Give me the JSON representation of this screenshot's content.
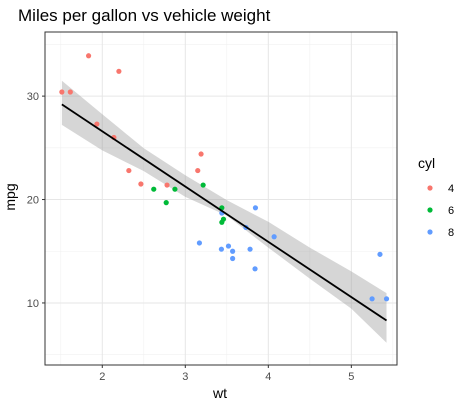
{
  "chart_data": {
    "type": "scatter",
    "title": "Miles per gallon vs vehicle weight",
    "xlabel": "wt",
    "ylabel": "mpg",
    "xlim": [
      1.31,
      5.55
    ],
    "ylim": [
      4.0,
      36.2
    ],
    "x_ticks": [
      2,
      3,
      4,
      5
    ],
    "y_ticks": [
      10,
      20,
      30
    ],
    "x_tick_labels": [
      "2",
      "3",
      "4",
      "5"
    ],
    "y_tick_labels": [
      "10",
      "20",
      "30"
    ],
    "grid": true,
    "legend_position": "right",
    "legend_title": "cyl",
    "series": [
      {
        "name": "4",
        "color": "#F8766D",
        "points": [
          {
            "x": 2.32,
            "y": 22.8
          },
          {
            "x": 3.19,
            "y": 24.4
          },
          {
            "x": 3.15,
            "y": 22.8
          },
          {
            "x": 2.2,
            "y": 32.4
          },
          {
            "x": 1.615,
            "y": 30.4
          },
          {
            "x": 1.835,
            "y": 33.9
          },
          {
            "x": 2.465,
            "y": 21.5
          },
          {
            "x": 1.935,
            "y": 27.3
          },
          {
            "x": 2.14,
            "y": 26.0
          },
          {
            "x": 1.513,
            "y": 30.4
          },
          {
            "x": 2.78,
            "y": 21.4
          }
        ]
      },
      {
        "name": "6",
        "color": "#00BA38",
        "points": [
          {
            "x": 2.62,
            "y": 21.0
          },
          {
            "x": 2.875,
            "y": 21.0
          },
          {
            "x": 3.215,
            "y": 21.4
          },
          {
            "x": 3.46,
            "y": 18.1
          },
          {
            "x": 3.44,
            "y": 19.2
          },
          {
            "x": 3.44,
            "y": 17.8
          },
          {
            "x": 2.77,
            "y": 19.7
          }
        ]
      },
      {
        "name": "8",
        "color": "#619CFF",
        "points": [
          {
            "x": 3.44,
            "y": 18.7
          },
          {
            "x": 3.57,
            "y": 14.3
          },
          {
            "x": 4.07,
            "y": 16.4
          },
          {
            "x": 3.73,
            "y": 17.3
          },
          {
            "x": 3.78,
            "y": 15.2
          },
          {
            "x": 5.25,
            "y": 10.4
          },
          {
            "x": 5.424,
            "y": 10.4
          },
          {
            "x": 5.345,
            "y": 14.7
          },
          {
            "x": 3.52,
            "y": 15.5
          },
          {
            "x": 3.435,
            "y": 15.2
          },
          {
            "x": 3.84,
            "y": 13.3
          },
          {
            "x": 3.845,
            "y": 19.2
          },
          {
            "x": 3.17,
            "y": 15.8
          },
          {
            "x": 3.57,
            "y": 15.0
          }
        ]
      }
    ],
    "trend_line": {
      "color": "#000000",
      "x_range": [
        1.513,
        5.424
      ],
      "intercept": 37.285,
      "slope": -5.344
    },
    "confidence_band": {
      "color": "#999999",
      "points": [
        {
          "x": 1.513,
          "lower": 27.22,
          "upper": 31.48
        },
        {
          "x": 2.0,
          "lower": 24.75,
          "upper": 28.25
        },
        {
          "x": 2.5,
          "lower": 22.75,
          "upper": 24.95
        },
        {
          "x": 3.0,
          "lower": 20.25,
          "upper": 22.35
        },
        {
          "x": 3.5,
          "lower": 18.45,
          "upper": 19.95
        },
        {
          "x": 4.0,
          "lower": 15.35,
          "upper": 17.85
        },
        {
          "x": 4.5,
          "lower": 12.35,
          "upper": 15.35
        },
        {
          "x": 5.0,
          "lower": 9.45,
          "upper": 13.05
        },
        {
          "x": 5.424,
          "lower": 6.15,
          "upper": 10.95
        }
      ]
    }
  }
}
